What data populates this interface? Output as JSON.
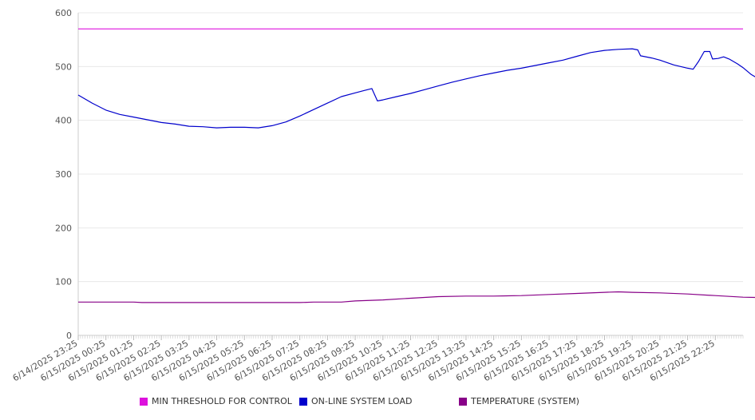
{
  "chart_data": {
    "type": "line",
    "ylim": [
      0,
      600
    ],
    "y_ticks": [
      0,
      100,
      200,
      300,
      400,
      500,
      600
    ],
    "x_ticks": [
      "6/14/2025 23:25",
      "6/15/2025 00:25",
      "6/15/2025 01:25",
      "6/15/2025 02:25",
      "6/15/2025 03:25",
      "6/15/2025 04:25",
      "6/15/2025 05:25",
      "6/15/2025 06:25",
      "6/15/2025 07:25",
      "6/15/2025 08:25",
      "6/15/2025 09:25",
      "6/15/2025 10:25",
      "6/15/2025 11:25",
      "6/15/2025 12:25",
      "6/15/2025 13:25",
      "6/15/2025 14:25",
      "6/15/2025 15:25",
      "6/15/2025 16:25",
      "6/15/2025 17:25",
      "6/15/2025 18:25",
      "6/15/2025 19:25",
      "6/15/2025 20:25",
      "6/15/2025 21:25",
      "6/15/2025 22:25"
    ],
    "x_end": 24,
    "grid": "horizontal",
    "legend_position": "bottom",
    "series": [
      {
        "name": "MIN THRESHOLD FOR CONTROL",
        "color": "#dd11dd",
        "points": [
          [
            0,
            570
          ],
          [
            24,
            570
          ]
        ]
      },
      {
        "name": "ON-LINE SYSTEM LOAD",
        "color": "#0000cc",
        "points": [
          [
            0,
            447
          ],
          [
            0.5,
            432
          ],
          [
            1,
            419
          ],
          [
            1.5,
            411
          ],
          [
            2,
            406
          ],
          [
            2.5,
            401
          ],
          [
            3,
            396
          ],
          [
            3.5,
            393
          ],
          [
            4,
            389
          ],
          [
            4.5,
            388
          ],
          [
            5,
            386
          ],
          [
            5.5,
            387
          ],
          [
            6,
            387
          ],
          [
            6.5,
            386
          ],
          [
            7,
            390
          ],
          [
            7.5,
            397
          ],
          [
            8,
            408
          ],
          [
            8.5,
            420
          ],
          [
            9,
            432
          ],
          [
            9.5,
            444
          ],
          [
            10,
            451
          ],
          [
            10.3,
            455
          ],
          [
            10.6,
            459
          ],
          [
            10.8,
            436
          ],
          [
            11,
            438
          ],
          [
            11.5,
            444
          ],
          [
            12,
            450
          ],
          [
            12.5,
            457
          ],
          [
            13,
            464
          ],
          [
            13.5,
            471
          ],
          [
            14,
            477
          ],
          [
            14.5,
            483
          ],
          [
            15,
            488
          ],
          [
            15.5,
            493
          ],
          [
            16,
            497
          ],
          [
            16.5,
            502
          ],
          [
            17,
            507
          ],
          [
            17.5,
            512
          ],
          [
            18,
            519
          ],
          [
            18.5,
            526
          ],
          [
            19,
            530
          ],
          [
            19.5,
            532
          ],
          [
            20,
            533
          ],
          [
            20.2,
            531
          ],
          [
            20.3,
            520
          ],
          [
            20.7,
            516
          ],
          [
            21,
            512
          ],
          [
            21.5,
            503
          ],
          [
            22,
            497
          ],
          [
            22.2,
            495
          ],
          [
            22.4,
            510
          ],
          [
            22.6,
            528
          ],
          [
            22.8,
            528
          ],
          [
            22.9,
            514
          ],
          [
            23.1,
            515
          ],
          [
            23.3,
            518
          ],
          [
            23.5,
            514
          ],
          [
            23.8,
            505
          ],
          [
            24,
            498
          ],
          [
            24.3,
            485
          ],
          [
            24.6,
            476
          ],
          [
            24.9,
            472
          ]
        ]
      },
      {
        "name": "TEMPERATURE (SYSTEM)",
        "color": "#880088",
        "points": [
          [
            0,
            62
          ],
          [
            2,
            62
          ],
          [
            2.3,
            61
          ],
          [
            4,
            61
          ],
          [
            6,
            61
          ],
          [
            8,
            61
          ],
          [
            8.5,
            62
          ],
          [
            9.5,
            62
          ],
          [
            10,
            64
          ],
          [
            11,
            66
          ],
          [
            12,
            69
          ],
          [
            13,
            72
          ],
          [
            14,
            73
          ],
          [
            15,
            73
          ],
          [
            16,
            74
          ],
          [
            17,
            76
          ],
          [
            18,
            78
          ],
          [
            19,
            80
          ],
          [
            19.5,
            81
          ],
          [
            20,
            80
          ],
          [
            21,
            79
          ],
          [
            22,
            77
          ],
          [
            23,
            74
          ],
          [
            24,
            71
          ],
          [
            24.9,
            70
          ]
        ]
      }
    ]
  }
}
